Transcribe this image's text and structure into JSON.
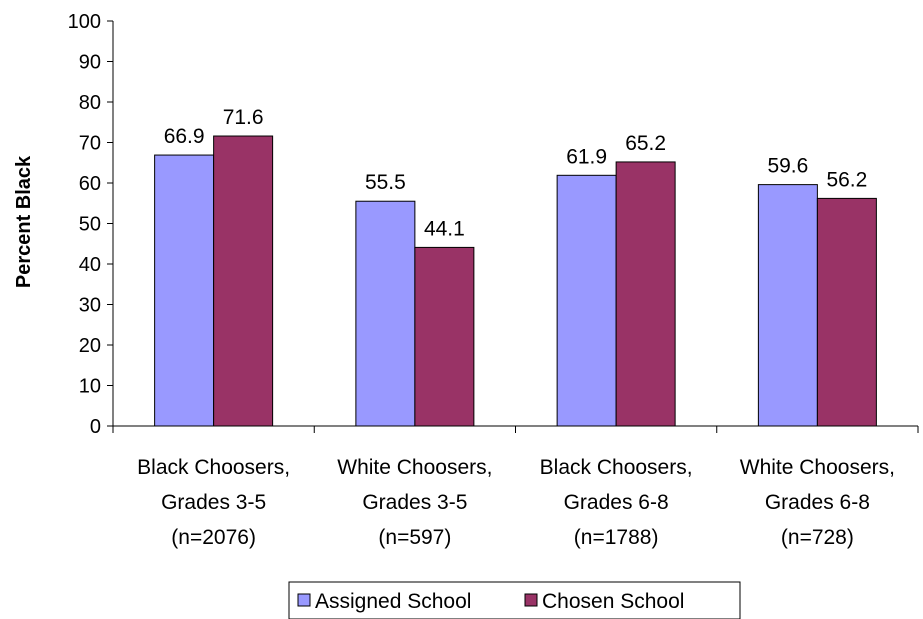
{
  "chart_data": {
    "type": "bar",
    "title": "",
    "xlabel": "",
    "ylabel": "Percent Black",
    "ylim": [
      0,
      100
    ],
    "ytick_step": 10,
    "grid": false,
    "legend_position": "bottom",
    "categories": [
      [
        "Black Choosers,",
        "Grades 3-5",
        "(n=2076)"
      ],
      [
        "White Choosers,",
        "Grades 3-5",
        "(n=597)"
      ],
      [
        "Black Choosers,",
        "Grades 6-8",
        "(n=1788)"
      ],
      [
        "White Choosers,",
        "Grades 6-8",
        "(n=728)"
      ]
    ],
    "series": [
      {
        "name": "Assigned School",
        "color": "#9999ff",
        "values": [
          66.9,
          55.5,
          61.9,
          59.6
        ]
      },
      {
        "name": "Chosen School",
        "color": "#993366",
        "values": [
          71.6,
          44.1,
          65.2,
          56.2
        ]
      }
    ]
  }
}
